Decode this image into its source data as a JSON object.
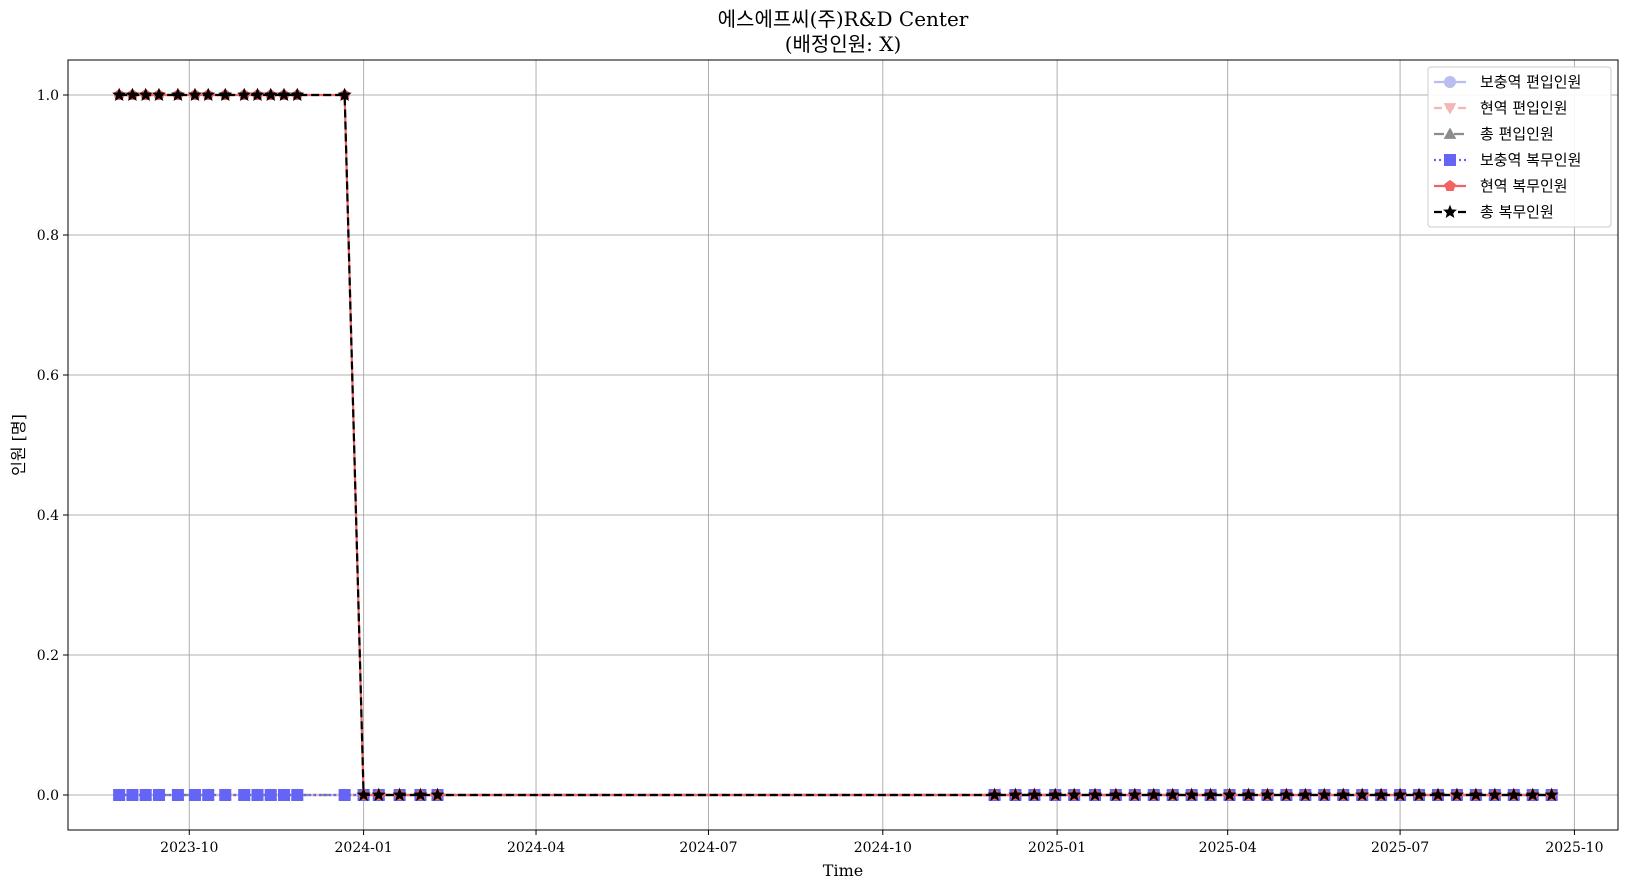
{
  "chart_data": {
    "type": "line",
    "title": "에스에프씨(주)R&D Center",
    "subtitle": "(배정인원: X)",
    "xlabel": "Time",
    "ylabel": "인원 [명]",
    "ylim": [
      -0.05,
      1.05
    ],
    "xlim": [
      "2023-07-29",
      "2025-10-24"
    ],
    "yticks": [
      0.0,
      0.2,
      0.4,
      0.6,
      0.8,
      1.0
    ],
    "ytick_labels": [
      "0.0",
      "0.2",
      "0.4",
      "0.6",
      "0.8",
      "1.0"
    ],
    "xticks": [
      "2023-10-01",
      "2024-01-01",
      "2024-04-01",
      "2024-07-01",
      "2024-10-01",
      "2025-01-01",
      "2025-04-01",
      "2025-07-01",
      "2025-10-01"
    ],
    "xtick_labels": [
      "2023-10",
      "2024-01",
      "2024-04",
      "2024-07",
      "2024-10",
      "2025-01",
      "2025-04",
      "2025-07",
      "2025-10"
    ],
    "grid": true,
    "legend_position": "top-right",
    "x": [
      "2023-08-25",
      "2023-09-01",
      "2023-09-08",
      "2023-09-15",
      "2023-09-25",
      "2023-10-04",
      "2023-10-11",
      "2023-10-20",
      "2023-10-30",
      "2023-11-06",
      "2023-11-13",
      "2023-11-20",
      "2023-11-27",
      "2023-12-22",
      "2024-01-01",
      "2024-01-09",
      "2024-01-20",
      "2024-01-31",
      "2024-02-09",
      "2024-11-29",
      "2024-12-10",
      "2024-12-20",
      "2024-12-31",
      "2025-01-10",
      "2025-01-21",
      "2025-02-01",
      "2025-02-11",
      "2025-02-21",
      "2025-03-03",
      "2025-03-13",
      "2025-03-23",
      "2025-04-02",
      "2025-04-12",
      "2025-04-22",
      "2025-05-02",
      "2025-05-12",
      "2025-05-22",
      "2025-06-01",
      "2025-06-11",
      "2025-06-21",
      "2025-07-01",
      "2025-07-11",
      "2025-07-21",
      "2025-07-31",
      "2025-08-10",
      "2025-08-20",
      "2025-08-30",
      "2025-09-09",
      "2025-09-19"
    ],
    "series": [
      {
        "name": "보충역 편입인원",
        "color": "#b9bdf0",
        "marker": "circle",
        "dash": "solid",
        "values": [
          0,
          0,
          0,
          0,
          0,
          0,
          0,
          0,
          0,
          0,
          0,
          0,
          0,
          0,
          0,
          0,
          0,
          0,
          0,
          0,
          0,
          0,
          0,
          0,
          0,
          0,
          0,
          0,
          0,
          0,
          0,
          0,
          0,
          0,
          0,
          0,
          0,
          0,
          0,
          0,
          0,
          0,
          0,
          0,
          0,
          0,
          0,
          0,
          0
        ]
      },
      {
        "name": "현역 편입인원",
        "color": "#f2b6b6",
        "marker": "triangle-down",
        "dash": "dashed",
        "values": [
          0,
          0,
          0,
          0,
          0,
          0,
          0,
          0,
          0,
          0,
          0,
          0,
          0,
          0,
          0,
          0,
          0,
          0,
          0,
          0,
          0,
          0,
          0,
          0,
          0,
          0,
          0,
          0,
          0,
          0,
          0,
          0,
          0,
          0,
          0,
          0,
          0,
          0,
          0,
          0,
          0,
          0,
          0,
          0,
          0,
          0,
          0,
          0,
          0
        ]
      },
      {
        "name": "총 편입인원",
        "color": "#8c8c8c",
        "marker": "triangle-up",
        "dash": "dashdot",
        "values": [
          0,
          0,
          0,
          0,
          0,
          0,
          0,
          0,
          0,
          0,
          0,
          0,
          0,
          0,
          0,
          0,
          0,
          0,
          0,
          0,
          0,
          0,
          0,
          0,
          0,
          0,
          0,
          0,
          0,
          0,
          0,
          0,
          0,
          0,
          0,
          0,
          0,
          0,
          0,
          0,
          0,
          0,
          0,
          0,
          0,
          0,
          0,
          0,
          0
        ]
      },
      {
        "name": "보충역 복무인원",
        "color": "#6464f5",
        "marker": "square",
        "dash": "dotted",
        "values": [
          0,
          0,
          0,
          0,
          0,
          0,
          0,
          0,
          0,
          0,
          0,
          0,
          0,
          0,
          0,
          0,
          0,
          0,
          0,
          0,
          0,
          0,
          0,
          0,
          0,
          0,
          0,
          0,
          0,
          0,
          0,
          0,
          0,
          0,
          0,
          0,
          0,
          0,
          0,
          0,
          0,
          0,
          0,
          0,
          0,
          0,
          0,
          0,
          0
        ]
      },
      {
        "name": "현역 복무인원",
        "color": "#f06464",
        "marker": "pentagon",
        "dash": "solid",
        "values": [
          1,
          1,
          1,
          1,
          1,
          1,
          1,
          1,
          1,
          1,
          1,
          1,
          1,
          1,
          0,
          0,
          0,
          0,
          0,
          0,
          0,
          0,
          0,
          0,
          0,
          0,
          0,
          0,
          0,
          0,
          0,
          0,
          0,
          0,
          0,
          0,
          0,
          0,
          0,
          0,
          0,
          0,
          0,
          0,
          0,
          0,
          0,
          0,
          0
        ]
      },
      {
        "name": "총 복무인원",
        "color": "#000000",
        "marker": "star",
        "dash": "dashed",
        "values": [
          1,
          1,
          1,
          1,
          1,
          1,
          1,
          1,
          1,
          1,
          1,
          1,
          1,
          1,
          0,
          0,
          0,
          0,
          0,
          0,
          0,
          0,
          0,
          0,
          0,
          0,
          0,
          0,
          0,
          0,
          0,
          0,
          0,
          0,
          0,
          0,
          0,
          0,
          0,
          0,
          0,
          0,
          0,
          0,
          0,
          0,
          0,
          0,
          0
        ]
      }
    ]
  }
}
